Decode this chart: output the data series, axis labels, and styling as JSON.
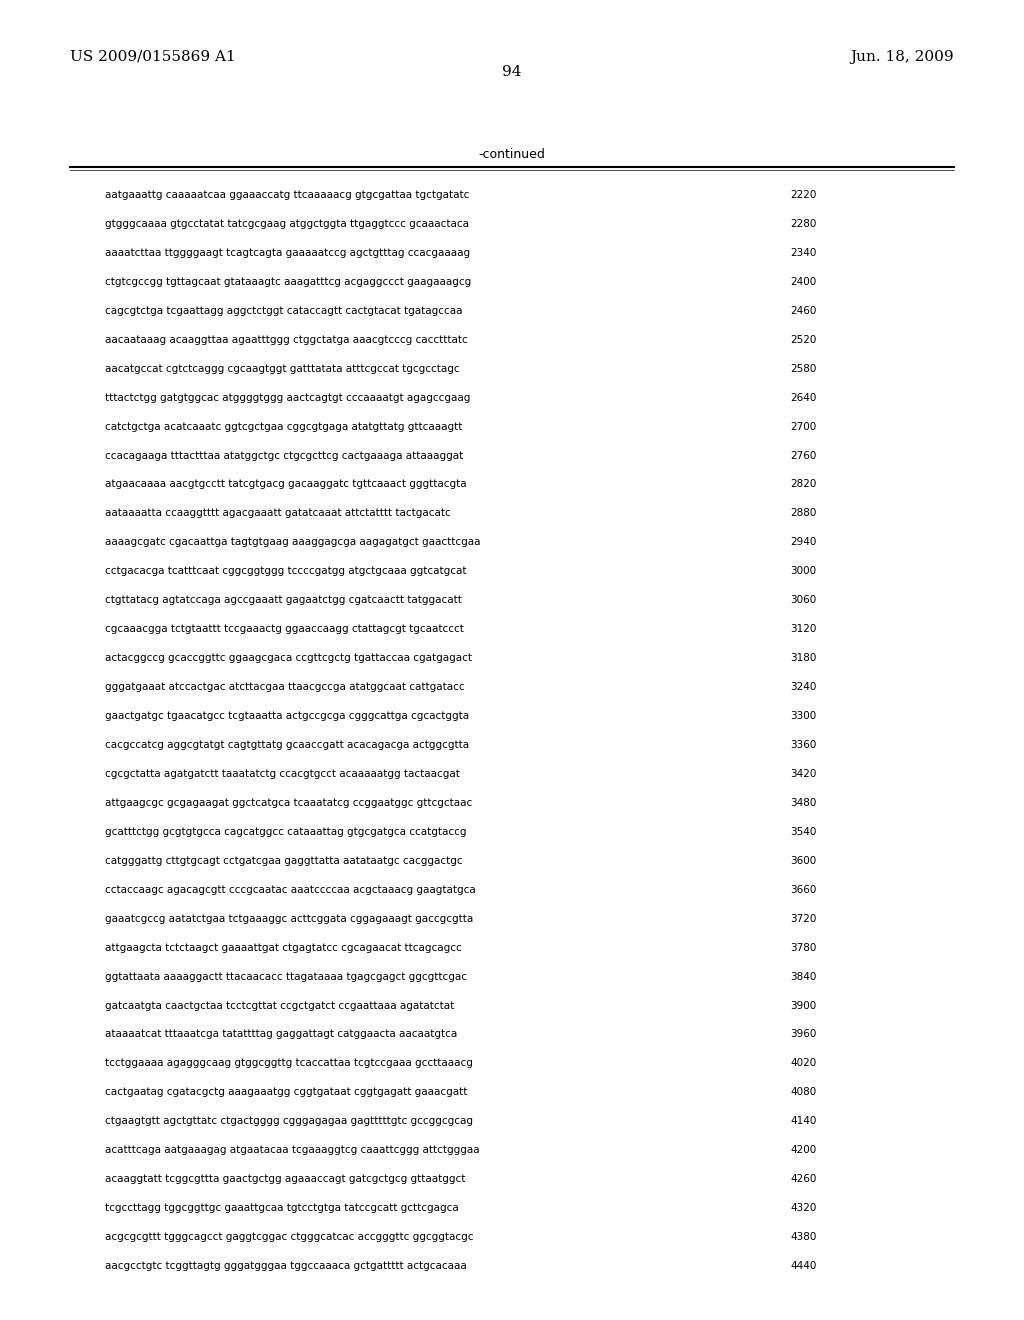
{
  "header_left": "US 2009/0155869 A1",
  "header_right": "Jun. 18, 2009",
  "page_number": "94",
  "continued_label": "-continued",
  "background_color": "#ffffff",
  "text_color": "#000000",
  "sequence_lines": [
    [
      "aatgaaattg caaaaatcaa ggaaaccatg ttcaaaaacg gtgcgattaa tgctgatatc",
      "2220"
    ],
    [
      "gtgggcaaaa gtgcctatat tatcgcgaag atggctggta ttgaggtccc gcaaactaca",
      "2280"
    ],
    [
      "aaaatcttaa ttggggaagt tcagtcagta gaaaaatccg agctgtttag ccacgaaaag",
      "2340"
    ],
    [
      "ctgtcgccgg tgttagcaat gtataaagtc aaagatttcg acgaggccct gaagaaagcg",
      "2400"
    ],
    [
      "cagcgtctga tcgaattagg aggctctggt cataccagtt cactgtacat tgatagccaa",
      "2460"
    ],
    [
      "aacaataaag acaaggttaa agaatttggg ctggctatga aaacgtcccg cacctttatc",
      "2520"
    ],
    [
      "aacatgccat cgtctcaggg cgcaagtggt gatttatata atttcgccat tgcgcctagc",
      "2580"
    ],
    [
      "tttactctgg gatgtggcac atggggtggg aactcagtgt cccaaaatgt agagccgaag",
      "2640"
    ],
    [
      "catctgctga acatcaaatc ggtcgctgaa cggcgtgaga atatgttatg gttcaaagtt",
      "2700"
    ],
    [
      "ccacagaaga tttactttaa atatggctgc ctgcgcttcg cactgaaaga attaaaggat",
      "2760"
    ],
    [
      "atgaacaaaa aacgtgcctt tatcgtgacg gacaaggatc tgttcaaact gggttacgta",
      "2820"
    ],
    [
      "aataaaatta ccaaggtttt agacgaaatt gatatcaaat attctatttt tactgacatc",
      "2880"
    ],
    [
      "aaaagcgatc cgacaattga tagtgtgaag aaaggagcga aagagatgct gaacttcgaa",
      "2940"
    ],
    [
      "cctgacacga tcatttcaat cggcggtggg tccccgatgg atgctgcaaa ggtcatgcat",
      "3000"
    ],
    [
      "ctgttatacg agtatccaga agccgaaatt gagaatctgg cgatcaactt tatggacatt",
      "3060"
    ],
    [
      "cgcaaacgga tctgtaattt tccgaaactg ggaaccaagg ctattagcgt tgcaatccct",
      "3120"
    ],
    [
      "actacggccg gcaccggttc ggaagcgaca ccgttcgctg tgattaccaa cgatgagact",
      "3180"
    ],
    [
      "gggatgaaat atccactgac atcttacgaa ttaacgccga atatggcaat cattgatacc",
      "3240"
    ],
    [
      "gaactgatgc tgaacatgcc tcgtaaatta actgccgcga cgggcattga cgcactggta",
      "3300"
    ],
    [
      "cacgccatcg aggcgtatgt cagtgttatg gcaaccgatt acacagacga actggcgtta",
      "3360"
    ],
    [
      "cgcgctatta agatgatctt taaatatctg ccacgtgcct acaaaaatgg tactaacgat",
      "3420"
    ],
    [
      "attgaagcgc gcgagaagat ggctcatgca tcaaatatcg ccggaatggc gttcgctaac",
      "3480"
    ],
    [
      "gcatttctgg gcgtgtgcca cagcatggcc cataaattag gtgcgatgca ccatgtaccg",
      "3540"
    ],
    [
      "catgggattg cttgtgcagt cctgatcgaa gaggttatta aatataatgc cacggactgc",
      "3600"
    ],
    [
      "cctaccaagc agacagcgtt cccgcaatac aaatccccaa acgctaaacg gaagtatgca",
      "3660"
    ],
    [
      "gaaatcgccg aatatctgaa tctgaaaggc acttcggata cggagaaagt gaccgcgtta",
      "3720"
    ],
    [
      "attgaagcta tctctaagct gaaaattgat ctgagtatcc cgcagaacat ttcagcagcc",
      "3780"
    ],
    [
      "ggtattaata aaaaggactt ttacaacacc ttagataaaa tgagcgagct ggcgttcgac",
      "3840"
    ],
    [
      "gatcaatgta caactgctaa tcctcgttat ccgctgatct ccgaattaaa agatatctat",
      "3900"
    ],
    [
      "ataaaatcat tttaaatcga tatattttag gaggattagt catggaacta aacaatgtca",
      "3960"
    ],
    [
      "tcctggaaaa agagggcaag gtggcggttg tcaccattaa tcgtccgaaa gccttaaacg",
      "4020"
    ],
    [
      "cactgaatag cgatacgctg aaagaaatgg cggtgataat cggtgagatt gaaacgatt",
      "4080"
    ],
    [
      "ctgaagtgtt agctgttatc ctgactgggg cgggagagaa gagtttttgtc gccggcgcag",
      "4140"
    ],
    [
      "acatttcaga aatgaaagag atgaatacaa tcgaaaggtcg caaattcggg attctgggaa",
      "4200"
    ],
    [
      "acaaggtatt tcggcgttta gaactgctgg agaaaccagt gatcgctgcg gttaatggct",
      "4260"
    ],
    [
      "tcgccttagg tggcggttgc gaaattgcaa tgtcctgtga tatccgcatt gcttcgagca",
      "4320"
    ],
    [
      "acgcgcgttt tgggcagcct gaggtcggac ctgggcatcac accgggttc ggcggtacgc",
      "4380"
    ],
    [
      "aacgcctgtc tcggttagtg gggatgggaa tggccaaaca gctgattttt actgcacaaa",
      "4440"
    ]
  ],
  "fig_width": 10.24,
  "fig_height": 13.2,
  "dpi": 100
}
